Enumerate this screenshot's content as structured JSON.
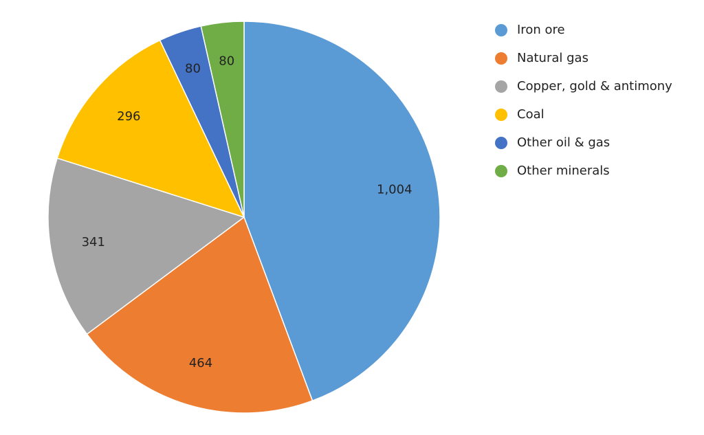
{
  "chart_data": {
    "type": "pie",
    "categories": [
      "Iron ore",
      "Natural gas",
      "Copper, gold & antimony",
      "Coal",
      "Other oil & gas",
      "Other minerals"
    ],
    "values": [
      1004,
      464,
      341,
      296,
      80,
      80
    ],
    "value_labels": [
      "1,004",
      "464",
      "341",
      "296",
      "80",
      "80"
    ],
    "colors": [
      "#5b9bd5",
      "#ed7d31",
      "#a5a5a5",
      "#ffc000",
      "#4472c4",
      "#70ad47"
    ],
    "legend": "right"
  }
}
